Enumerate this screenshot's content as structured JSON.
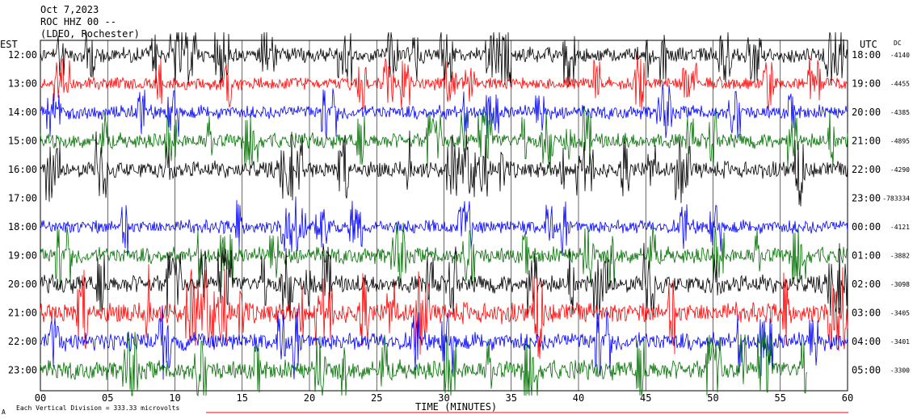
{
  "header": {
    "date": "Oct 7,2023",
    "station": "ROC HHZ 00 --",
    "network": "(LDEO, Rochester)"
  },
  "left_axis_title": "EST",
  "right_axis_title": "UTC",
  "dc_title": "DC",
  "footer": {
    "division_note": "Each Vertical Division = 333.33 microvolts",
    "corner_mark": "A"
  },
  "chart_data": {
    "type": "line",
    "title": "",
    "xlabel": "TIME (MINUTES)",
    "xlim": [
      0,
      60
    ],
    "x_ticks": [
      "00",
      "05",
      "10",
      "15",
      "20",
      "25",
      "30",
      "35",
      "40",
      "45",
      "50",
      "55",
      "60"
    ],
    "trace_colors": [
      "#000000",
      "#ff0000",
      "#0000ff",
      "#007000"
    ],
    "rows": [
      {
        "est": "12:00",
        "utc": "18:00",
        "dc": "-4140",
        "color": "#000000",
        "amplitude": 0.55,
        "end_minute": 60
      },
      {
        "est": "13:00",
        "utc": "19:00",
        "dc": "-4455",
        "color": "#ff0000",
        "amplitude": 0.45,
        "end_minute": 60
      },
      {
        "est": "14:00",
        "utc": "20:00",
        "dc": "-4385",
        "color": "#0000ff",
        "amplitude": 0.5,
        "end_minute": 60
      },
      {
        "est": "15:00",
        "utc": "21:00",
        "dc": "-4895",
        "color": "#007000",
        "amplitude": 0.55,
        "end_minute": 60
      },
      {
        "est": "16:00",
        "utc": "22:00",
        "dc": "-4290",
        "color": "#000000",
        "amplitude": 0.6,
        "end_minute": 60
      },
      {
        "est": "17:00",
        "utc": "23:00",
        "dc": "-783334",
        "color": "#ff0000",
        "amplitude": 0.0,
        "end_minute": 0
      },
      {
        "est": "18:00",
        "utc": "00:00",
        "dc": "-4121",
        "color": "#0000ff",
        "amplitude": 0.5,
        "end_minute": 60
      },
      {
        "est": "19:00",
        "utc": "01:00",
        "dc": "-3882",
        "color": "#007000",
        "amplitude": 0.6,
        "end_minute": 60
      },
      {
        "est": "20:00",
        "utc": "02:00",
        "dc": "-3098",
        "color": "#000000",
        "amplitude": 0.65,
        "end_minute": 60
      },
      {
        "est": "21:00",
        "utc": "03:00",
        "dc": "-3405",
        "color": "#ff0000",
        "amplitude": 0.75,
        "end_minute": 60
      },
      {
        "est": "22:00",
        "utc": "04:00",
        "dc": "-3401",
        "color": "#0000ff",
        "amplitude": 0.65,
        "end_minute": 60
      },
      {
        "est": "23:00",
        "utc": "05:00",
        "dc": "-3300",
        "color": "#007000",
        "amplitude": 0.7,
        "end_minute": 57
      }
    ]
  }
}
